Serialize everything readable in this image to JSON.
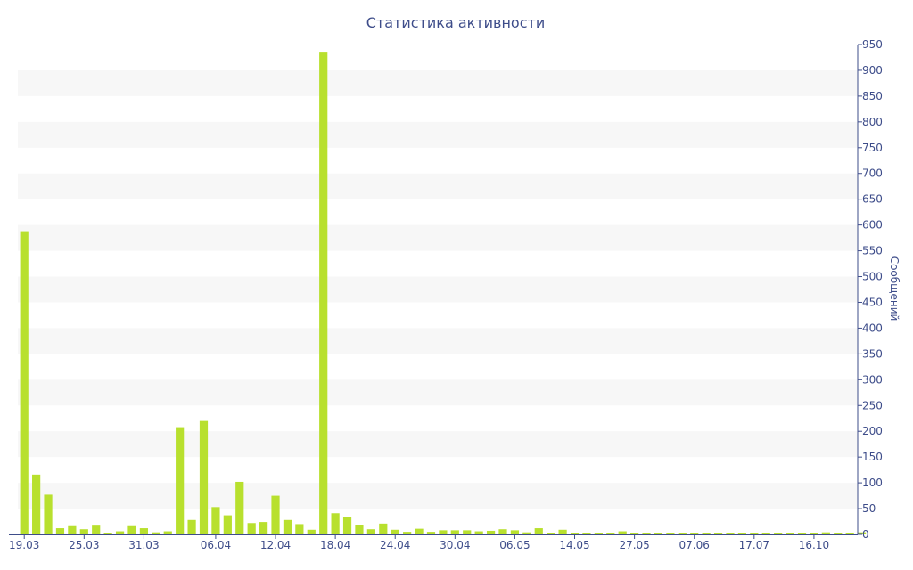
{
  "chart_data": {
    "type": "bar",
    "title": "Статистика активности",
    "xlabel": "",
    "ylabel": "Сообщений",
    "ylim": [
      0,
      950
    ],
    "ytick_step": 50,
    "y_axis_position": "right",
    "grid": "alternating horizontal bands",
    "bar_color": "#b8e02e",
    "axis_color": "#3e4d8a",
    "band_color": "#f7f7f7",
    "x_tick_labels": [
      {
        "label": "19.03",
        "index": 0
      },
      {
        "label": "25.03",
        "index": 5
      },
      {
        "label": "31.03",
        "index": 10
      },
      {
        "label": "06.04",
        "index": 16
      },
      {
        "label": "12.04",
        "index": 21
      },
      {
        "label": "18.04",
        "index": 26
      },
      {
        "label": "24.04",
        "index": 31
      },
      {
        "label": "30.04",
        "index": 36
      },
      {
        "label": "06.05",
        "index": 41
      },
      {
        "label": "14.05",
        "index": 46
      },
      {
        "label": "27.05",
        "index": 51
      },
      {
        "label": "07.06",
        "index": 56
      },
      {
        "label": "17.07",
        "index": 61
      },
      {
        "label": "16.10",
        "index": 66
      }
    ],
    "values": [
      588,
      116,
      77,
      12,
      16,
      10,
      17,
      3,
      6,
      16,
      12,
      4,
      6,
      208,
      28,
      220,
      53,
      37,
      102,
      22,
      24,
      75,
      28,
      20,
      9,
      936,
      41,
      33,
      18,
      10,
      21,
      9,
      5,
      11,
      5,
      8,
      8,
      8,
      6,
      7,
      10,
      8,
      4,
      12,
      3,
      9,
      3,
      3,
      3,
      3,
      6,
      3,
      3,
      2,
      3,
      3,
      3,
      3,
      3,
      2,
      3,
      3,
      2,
      3,
      2,
      3,
      2,
      4,
      3,
      3,
      4
    ]
  }
}
